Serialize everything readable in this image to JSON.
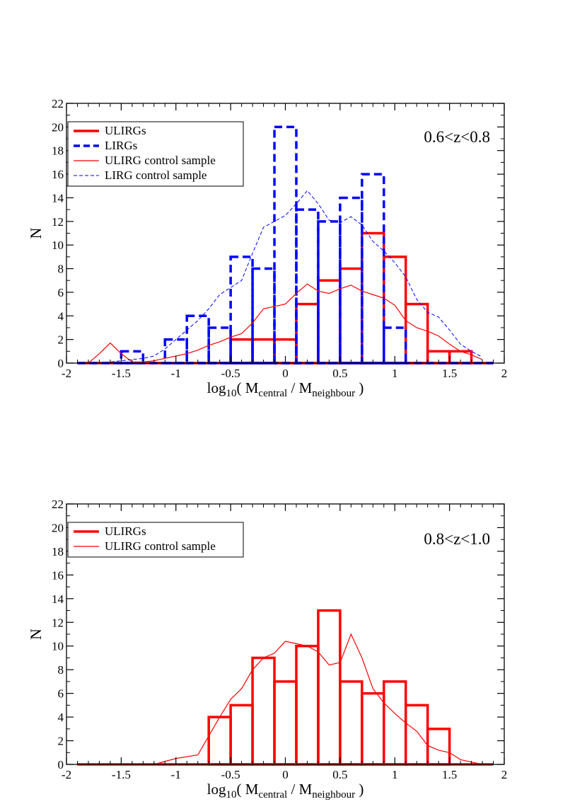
{
  "chart_data": [
    {
      "type": "histogram",
      "panel": "top",
      "annotation": "0.6<z<0.8",
      "xlabel": {
        "prefix": "log",
        "sub": "10",
        "open": "( M",
        "sub1": "central",
        "mid": " / M",
        "sub2": "neighbour",
        "close": " )"
      },
      "ylabel": "N",
      "xlim": [
        -2,
        2
      ],
      "ylim": [
        0,
        22
      ],
      "xticks": [
        -2,
        -1.5,
        -1,
        -0.5,
        0,
        0.5,
        1,
        1.5,
        2
      ],
      "xtick_labels": [
        "-2",
        "-1.5",
        "-1",
        "-0.5",
        "0",
        "0.5",
        "1",
        "1.5",
        "2"
      ],
      "yticks": [
        0,
        2,
        4,
        6,
        8,
        10,
        12,
        14,
        16,
        18,
        20,
        22
      ],
      "ytick_labels": [
        "0",
        "2",
        "4",
        "6",
        "8",
        "10",
        "12",
        "14",
        "16",
        "18",
        "20",
        "22"
      ],
      "legend": {
        "placement": "top-left",
        "entries": [
          "ULIRGs",
          "LIRGs",
          "ULIRG control sample",
          "LIRG control sample"
        ]
      },
      "bin_edges": [
        -1.9,
        -1.7,
        -1.5,
        -1.3,
        -1.1,
        -0.9,
        -0.7,
        -0.5,
        -0.3,
        -0.1,
        0.1,
        0.3,
        0.5,
        0.7,
        0.9,
        1.1,
        1.3,
        1.5,
        1.7,
        1.9
      ],
      "series": [
        {
          "name": "ULIRGs",
          "kind": "histogram",
          "color": "#ff0000",
          "style": "solid-thick",
          "values": [
            0,
            0,
            0,
            0,
            0,
            0,
            0,
            2,
            2,
            2,
            5,
            7,
            8,
            11,
            9,
            5,
            1,
            1,
            0
          ]
        },
        {
          "name": "LIRGs",
          "kind": "histogram",
          "color": "#0000ff",
          "style": "dashed-thick",
          "values": [
            0,
            0,
            1,
            0,
            2,
            4,
            3,
            9,
            8,
            20,
            13,
            12,
            14,
            16,
            3,
            0,
            0,
            0,
            0
          ]
        },
        {
          "name": "ULIRG control sample",
          "kind": "line",
          "color": "#ff0000",
          "style": "solid-thin",
          "x": [
            -1.8,
            -1.7,
            -1.6,
            -1.5,
            -1.4,
            -1.3,
            -1.2,
            -1.1,
            -1.0,
            -0.9,
            -0.8,
            -0.7,
            -0.6,
            -0.5,
            -0.4,
            -0.3,
            -0.2,
            -0.1,
            0.0,
            0.1,
            0.2,
            0.3,
            0.4,
            0.5,
            0.6,
            0.7,
            0.8,
            0.9,
            1.0,
            1.1,
            1.2,
            1.3,
            1.4,
            1.5,
            1.6,
            1.7,
            1.8
          ],
          "y": [
            0,
            0.8,
            1.7,
            0.8,
            0.1,
            0.1,
            0.2,
            0.4,
            0.6,
            0.8,
            1.1,
            1.5,
            1.8,
            2.2,
            2.5,
            3.4,
            4.6,
            4.8,
            5.0,
            5.9,
            6.7,
            6.1,
            5.9,
            6.3,
            6.6,
            6.1,
            5.8,
            5.5,
            4.9,
            3.6,
            3.0,
            2.7,
            2.3,
            1.6,
            1.0,
            0.7,
            0.3
          ]
        },
        {
          "name": "LIRG control sample",
          "kind": "line",
          "color": "#0000ff",
          "style": "dashed-thin",
          "x": [
            -1.8,
            -1.7,
            -1.6,
            -1.5,
            -1.4,
            -1.3,
            -1.2,
            -1.1,
            -1.0,
            -0.9,
            -0.8,
            -0.7,
            -0.6,
            -0.5,
            -0.4,
            -0.3,
            -0.2,
            -0.1,
            0.0,
            0.1,
            0.2,
            0.3,
            0.4,
            0.5,
            0.6,
            0.7,
            0.8,
            0.9,
            1.0,
            1.1,
            1.2,
            1.3,
            1.4,
            1.5,
            1.6,
            1.7,
            1.8
          ],
          "y": [
            0,
            0,
            0.1,
            0.2,
            0.3,
            0.4,
            0.6,
            1.2,
            2.0,
            2.8,
            3.6,
            4.6,
            5.8,
            6.4,
            7.0,
            9.3,
            11.5,
            12.0,
            12.5,
            13.5,
            14.6,
            13.5,
            12.1,
            11.9,
            12.4,
            11.7,
            10.3,
            9.5,
            8.5,
            7.3,
            5.4,
            4.3,
            3.9,
            2.8,
            1.6,
            1.0,
            0.5
          ]
        }
      ]
    },
    {
      "type": "histogram",
      "panel": "bottom",
      "annotation": "0.8<z<1.0",
      "xlabel": {
        "prefix": "log",
        "sub": "10",
        "open": "( M",
        "sub1": "central",
        "mid": " / M",
        "sub2": "neighbour",
        "close": " )"
      },
      "ylabel": "N",
      "xlim": [
        -2,
        2
      ],
      "ylim": [
        0,
        22
      ],
      "xticks": [
        -2,
        -1.5,
        -1,
        -0.5,
        0,
        0.5,
        1,
        1.5,
        2
      ],
      "xtick_labels": [
        "-2",
        "-1.5",
        "-1",
        "-0.5",
        "0",
        "0.5",
        "1",
        "1.5",
        "2"
      ],
      "yticks": [
        0,
        2,
        4,
        6,
        8,
        10,
        12,
        14,
        16,
        18,
        20,
        22
      ],
      "ytick_labels": [
        "0",
        "2",
        "4",
        "6",
        "8",
        "10",
        "12",
        "14",
        "16",
        "18",
        "20",
        "22"
      ],
      "legend": {
        "placement": "top-left",
        "entries": [
          "ULIRGs",
          "ULIRG control sample"
        ]
      },
      "bin_edges": [
        -1.9,
        -1.7,
        -1.5,
        -1.3,
        -1.1,
        -0.9,
        -0.7,
        -0.5,
        -0.3,
        -0.1,
        0.1,
        0.3,
        0.5,
        0.7,
        0.9,
        1.1,
        1.3,
        1.5,
        1.7,
        1.9
      ],
      "series": [
        {
          "name": "ULIRGs",
          "kind": "histogram",
          "color": "#ff0000",
          "style": "solid-thick",
          "values": [
            0,
            0,
            0,
            0,
            0,
            0,
            4,
            5,
            9,
            7,
            10,
            13,
            7,
            6,
            7,
            5,
            3,
            0,
            0
          ]
        },
        {
          "name": "ULIRG control sample",
          "kind": "line",
          "color": "#ff0000",
          "style": "solid-thin",
          "x": [
            -1.8,
            -1.6,
            -1.4,
            -1.2,
            -1.0,
            -0.8,
            -0.6,
            -0.5,
            -0.4,
            -0.3,
            -0.2,
            -0.1,
            0.0,
            0.1,
            0.2,
            0.3,
            0.4,
            0.5,
            0.6,
            0.7,
            0.8,
            0.9,
            1.0,
            1.1,
            1.2,
            1.3,
            1.4,
            1.5,
            1.6,
            1.7,
            1.8
          ],
          "y": [
            0,
            0,
            0,
            0,
            0.5,
            0.8,
            4.0,
            5.5,
            6.4,
            8.0,
            9.0,
            9.4,
            10.4,
            10.2,
            10.0,
            9.5,
            8.4,
            8.6,
            11.0,
            9.0,
            6.4,
            5.2,
            4.3,
            3.5,
            2.8,
            1.6,
            1.2,
            1.0,
            0.4,
            0.2,
            0
          ]
        }
      ]
    }
  ]
}
